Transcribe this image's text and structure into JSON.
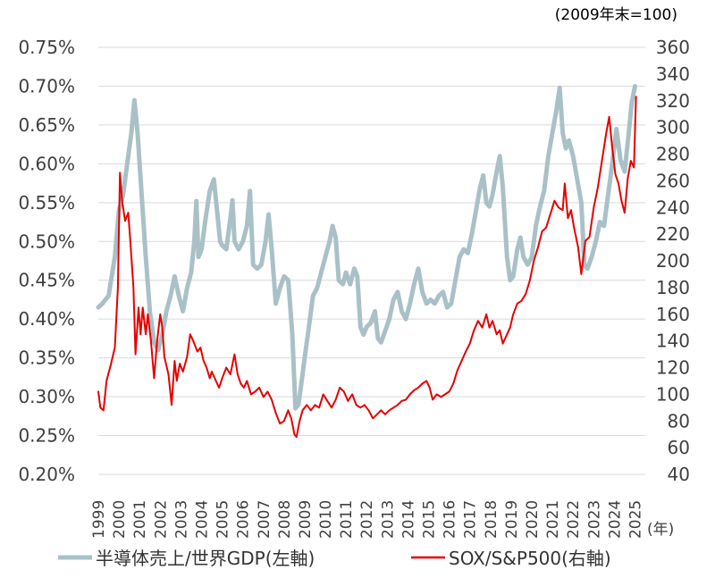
{
  "chart_data": {
    "type": "line",
    "title": "",
    "unit_note": "(2009年末=100)",
    "x_unit_label": "(年)",
    "x_years": [
      "1999",
      "2000",
      "2001",
      "2002",
      "2003",
      "2004",
      "2005",
      "2006",
      "2007",
      "2008",
      "2009",
      "2010",
      "2011",
      "2012",
      "2013",
      "2014",
      "2015",
      "2016",
      "2017",
      "2018",
      "2019",
      "2020",
      "2021",
      "2022",
      "2023",
      "2024",
      "2025"
    ],
    "y_left": {
      "ylim": [
        0.2,
        0.75
      ],
      "tick_labels": [
        "0.20%",
        "0.25%",
        "0.30%",
        "0.35%",
        "0.40%",
        "0.45%",
        "0.50%",
        "0.55%",
        "0.60%",
        "0.65%",
        "0.70%",
        "0.75%"
      ]
    },
    "y_right": {
      "ylim": [
        40,
        360
      ],
      "tick_labels": [
        "40",
        "60",
        "80",
        "100",
        "120",
        "140",
        "160",
        "180",
        "200",
        "220",
        "240",
        "260",
        "280",
        "300",
        "320",
        "340",
        "360"
      ]
    },
    "series": [
      {
        "name": "半導体売上/世界GDP(左軸)",
        "axis": "left",
        "color": "#a9c1c6",
        "points": [
          [
            1999.0,
            0.415
          ],
          [
            1999.2,
            0.42
          ],
          [
            1999.5,
            0.43
          ],
          [
            1999.8,
            0.48
          ],
          [
            2000.0,
            0.54
          ],
          [
            2000.2,
            0.56
          ],
          [
            2000.4,
            0.6
          ],
          [
            2000.6,
            0.64
          ],
          [
            2000.75,
            0.682
          ],
          [
            2000.9,
            0.64
          ],
          [
            2001.1,
            0.56
          ],
          [
            2001.3,
            0.48
          ],
          [
            2001.5,
            0.41
          ],
          [
            2001.7,
            0.37
          ],
          [
            2001.9,
            0.36
          ],
          [
            2002.1,
            0.38
          ],
          [
            2002.3,
            0.41
          ],
          [
            2002.5,
            0.43
          ],
          [
            2002.7,
            0.455
          ],
          [
            2002.9,
            0.43
          ],
          [
            2003.1,
            0.41
          ],
          [
            2003.3,
            0.44
          ],
          [
            2003.5,
            0.46
          ],
          [
            2003.65,
            0.5
          ],
          [
            2003.75,
            0.552
          ],
          [
            2003.85,
            0.48
          ],
          [
            2004.0,
            0.49
          ],
          [
            2004.2,
            0.53
          ],
          [
            2004.4,
            0.565
          ],
          [
            2004.6,
            0.58
          ],
          [
            2004.75,
            0.54
          ],
          [
            2004.9,
            0.5
          ],
          [
            2005.0,
            0.495
          ],
          [
            2005.2,
            0.49
          ],
          [
            2005.4,
            0.53
          ],
          [
            2005.5,
            0.553
          ],
          [
            2005.6,
            0.5
          ],
          [
            2005.8,
            0.49
          ],
          [
            2006.0,
            0.5
          ],
          [
            2006.2,
            0.52
          ],
          [
            2006.35,
            0.565
          ],
          [
            2006.5,
            0.47
          ],
          [
            2006.7,
            0.465
          ],
          [
            2006.9,
            0.47
          ],
          [
            2007.1,
            0.5
          ],
          [
            2007.25,
            0.535
          ],
          [
            2007.4,
            0.49
          ],
          [
            2007.6,
            0.42
          ],
          [
            2007.8,
            0.44
          ],
          [
            2008.0,
            0.455
          ],
          [
            2008.2,
            0.45
          ],
          [
            2008.4,
            0.38
          ],
          [
            2008.55,
            0.285
          ],
          [
            2008.7,
            0.29
          ],
          [
            2008.85,
            0.32
          ],
          [
            2009.0,
            0.35
          ],
          [
            2009.2,
            0.39
          ],
          [
            2009.4,
            0.43
          ],
          [
            2009.6,
            0.44
          ],
          [
            2009.8,
            0.46
          ],
          [
            2010.0,
            0.48
          ],
          [
            2010.2,
            0.5
          ],
          [
            2010.35,
            0.52
          ],
          [
            2010.5,
            0.505
          ],
          [
            2010.65,
            0.45
          ],
          [
            2010.85,
            0.445
          ],
          [
            2011.0,
            0.46
          ],
          [
            2011.2,
            0.445
          ],
          [
            2011.4,
            0.465
          ],
          [
            2011.55,
            0.455
          ],
          [
            2011.7,
            0.39
          ],
          [
            2011.85,
            0.38
          ],
          [
            2012.0,
            0.39
          ],
          [
            2012.2,
            0.395
          ],
          [
            2012.4,
            0.41
          ],
          [
            2012.55,
            0.375
          ],
          [
            2012.7,
            0.37
          ],
          [
            2012.9,
            0.385
          ],
          [
            2013.1,
            0.4
          ],
          [
            2013.3,
            0.425
          ],
          [
            2013.5,
            0.435
          ],
          [
            2013.7,
            0.41
          ],
          [
            2013.9,
            0.4
          ],
          [
            2014.1,
            0.42
          ],
          [
            2014.3,
            0.445
          ],
          [
            2014.5,
            0.465
          ],
          [
            2014.7,
            0.435
          ],
          [
            2014.9,
            0.42
          ],
          [
            2015.1,
            0.425
          ],
          [
            2015.3,
            0.42
          ],
          [
            2015.5,
            0.43
          ],
          [
            2015.7,
            0.435
          ],
          [
            2015.9,
            0.415
          ],
          [
            2016.1,
            0.42
          ],
          [
            2016.3,
            0.45
          ],
          [
            2016.5,
            0.48
          ],
          [
            2016.7,
            0.49
          ],
          [
            2016.9,
            0.485
          ],
          [
            2017.1,
            0.51
          ],
          [
            2017.3,
            0.54
          ],
          [
            2017.5,
            0.57
          ],
          [
            2017.65,
            0.585
          ],
          [
            2017.8,
            0.55
          ],
          [
            2017.95,
            0.545
          ],
          [
            2018.1,
            0.56
          ],
          [
            2018.3,
            0.59
          ],
          [
            2018.45,
            0.61
          ],
          [
            2018.6,
            0.57
          ],
          [
            2018.8,
            0.48
          ],
          [
            2018.95,
            0.45
          ],
          [
            2019.1,
            0.455
          ],
          [
            2019.3,
            0.49
          ],
          [
            2019.45,
            0.505
          ],
          [
            2019.6,
            0.48
          ],
          [
            2019.8,
            0.47
          ],
          [
            2020.0,
            0.48
          ],
          [
            2020.2,
            0.52
          ],
          [
            2020.4,
            0.545
          ],
          [
            2020.6,
            0.565
          ],
          [
            2020.8,
            0.61
          ],
          [
            2021.0,
            0.64
          ],
          [
            2021.2,
            0.67
          ],
          [
            2021.35,
            0.698
          ],
          [
            2021.5,
            0.64
          ],
          [
            2021.65,
            0.62
          ],
          [
            2021.8,
            0.63
          ],
          [
            2022.0,
            0.61
          ],
          [
            2022.2,
            0.58
          ],
          [
            2022.4,
            0.55
          ],
          [
            2022.55,
            0.47
          ],
          [
            2022.7,
            0.465
          ],
          [
            2022.9,
            0.48
          ],
          [
            2023.1,
            0.5
          ],
          [
            2023.3,
            0.525
          ],
          [
            2023.5,
            0.52
          ],
          [
            2023.7,
            0.56
          ],
          [
            2023.9,
            0.6
          ],
          [
            2024.1,
            0.645
          ],
          [
            2024.3,
            0.605
          ],
          [
            2024.5,
            0.59
          ],
          [
            2024.7,
            0.64
          ],
          [
            2024.85,
            0.68
          ],
          [
            2025.0,
            0.7
          ]
        ]
      },
      {
        "name": "SOX/S&P500(右軸)",
        "axis": "right",
        "color": "#e60000",
        "points": [
          [
            1999.0,
            102
          ],
          [
            1999.1,
            90
          ],
          [
            1999.25,
            88
          ],
          [
            1999.4,
            110
          ],
          [
            1999.6,
            122
          ],
          [
            1999.8,
            135
          ],
          [
            1999.95,
            180
          ],
          [
            2000.05,
            266
          ],
          [
            2000.15,
            245
          ],
          [
            2000.3,
            230
          ],
          [
            2000.45,
            236
          ],
          [
            2000.55,
            215
          ],
          [
            2000.7,
            180
          ],
          [
            2000.8,
            130
          ],
          [
            2000.95,
            165
          ],
          [
            2001.05,
            145
          ],
          [
            2001.15,
            165
          ],
          [
            2001.3,
            145
          ],
          [
            2001.4,
            160
          ],
          [
            2001.55,
            140
          ],
          [
            2001.7,
            112
          ],
          [
            2001.85,
            140
          ],
          [
            2002.0,
            160
          ],
          [
            2002.1,
            150
          ],
          [
            2002.2,
            128
          ],
          [
            2002.4,
            115
          ],
          [
            2002.55,
            92
          ],
          [
            2002.7,
            125
          ],
          [
            2002.8,
            110
          ],
          [
            2002.95,
            123
          ],
          [
            2003.1,
            117
          ],
          [
            2003.3,
            128
          ],
          [
            2003.45,
            145
          ],
          [
            2003.6,
            140
          ],
          [
            2003.8,
            132
          ],
          [
            2003.95,
            135
          ],
          [
            2004.1,
            125
          ],
          [
            2004.25,
            120
          ],
          [
            2004.4,
            112
          ],
          [
            2004.5,
            117
          ],
          [
            2004.7,
            110
          ],
          [
            2004.85,
            105
          ],
          [
            2005.0,
            112
          ],
          [
            2005.2,
            120
          ],
          [
            2005.4,
            115
          ],
          [
            2005.6,
            130
          ],
          [
            2005.75,
            115
          ],
          [
            2005.9,
            108
          ],
          [
            2006.05,
            105
          ],
          [
            2006.2,
            110
          ],
          [
            2006.4,
            100
          ],
          [
            2006.6,
            102
          ],
          [
            2006.8,
            105
          ],
          [
            2007.0,
            98
          ],
          [
            2007.2,
            102
          ],
          [
            2007.4,
            96
          ],
          [
            2007.6,
            86
          ],
          [
            2007.8,
            78
          ],
          [
            2008.0,
            80
          ],
          [
            2008.2,
            88
          ],
          [
            2008.35,
            82
          ],
          [
            2008.5,
            70
          ],
          [
            2008.6,
            68
          ],
          [
            2008.75,
            80
          ],
          [
            2008.9,
            88
          ],
          [
            2009.1,
            92
          ],
          [
            2009.3,
            88
          ],
          [
            2009.5,
            92
          ],
          [
            2009.7,
            90
          ],
          [
            2009.9,
            100
          ],
          [
            2010.1,
            95
          ],
          [
            2010.3,
            90
          ],
          [
            2010.5,
            96
          ],
          [
            2010.7,
            105
          ],
          [
            2010.9,
            102
          ],
          [
            2011.1,
            95
          ],
          [
            2011.3,
            100
          ],
          [
            2011.5,
            92
          ],
          [
            2011.7,
            90
          ],
          [
            2011.9,
            92
          ],
          [
            2012.1,
            88
          ],
          [
            2012.3,
            82
          ],
          [
            2012.5,
            85
          ],
          [
            2012.7,
            88
          ],
          [
            2012.9,
            85
          ],
          [
            2013.1,
            88
          ],
          [
            2013.3,
            90
          ],
          [
            2013.5,
            92
          ],
          [
            2013.7,
            95
          ],
          [
            2013.9,
            96
          ],
          [
            2014.1,
            100
          ],
          [
            2014.3,
            103
          ],
          [
            2014.5,
            105
          ],
          [
            2014.7,
            108
          ],
          [
            2014.9,
            110
          ],
          [
            2015.05,
            105
          ],
          [
            2015.2,
            96
          ],
          [
            2015.4,
            100
          ],
          [
            2015.6,
            98
          ],
          [
            2015.8,
            100
          ],
          [
            2016.0,
            102
          ],
          [
            2016.2,
            108
          ],
          [
            2016.4,
            118
          ],
          [
            2016.6,
            125
          ],
          [
            2016.8,
            132
          ],
          [
            2017.0,
            138
          ],
          [
            2017.2,
            148
          ],
          [
            2017.4,
            155
          ],
          [
            2017.6,
            150
          ],
          [
            2017.8,
            160
          ],
          [
            2017.95,
            150
          ],
          [
            2018.1,
            155
          ],
          [
            2018.3,
            145
          ],
          [
            2018.45,
            148
          ],
          [
            2018.6,
            138
          ],
          [
            2018.8,
            145
          ],
          [
            2018.95,
            150
          ],
          [
            2019.1,
            160
          ],
          [
            2019.3,
            168
          ],
          [
            2019.5,
            170
          ],
          [
            2019.7,
            175
          ],
          [
            2019.9,
            185
          ],
          [
            2020.1,
            200
          ],
          [
            2020.3,
            210
          ],
          [
            2020.5,
            222
          ],
          [
            2020.7,
            225
          ],
          [
            2020.9,
            235
          ],
          [
            2021.1,
            245
          ],
          [
            2021.3,
            240
          ],
          [
            2021.5,
            238
          ],
          [
            2021.6,
            258
          ],
          [
            2021.75,
            232
          ],
          [
            2021.9,
            238
          ],
          [
            2022.05,
            225
          ],
          [
            2022.25,
            210
          ],
          [
            2022.4,
            190
          ],
          [
            2022.6,
            215
          ],
          [
            2022.8,
            218
          ],
          [
            2023.0,
            240
          ],
          [
            2023.2,
            255
          ],
          [
            2023.4,
            275
          ],
          [
            2023.6,
            295
          ],
          [
            2023.75,
            308
          ],
          [
            2023.9,
            285
          ],
          [
            2024.05,
            265
          ],
          [
            2024.2,
            258
          ],
          [
            2024.35,
            245
          ],
          [
            2024.5,
            236
          ],
          [
            2024.65,
            262
          ],
          [
            2024.8,
            275
          ],
          [
            2024.95,
            270
          ],
          [
            2025.05,
            323
          ]
        ]
      }
    ],
    "legend": [
      "半導体売上/世界GDP(左軸)",
      "SOX/S&P500(右軸)"
    ],
    "legend_position": "bottom",
    "grid": "horizontal"
  }
}
